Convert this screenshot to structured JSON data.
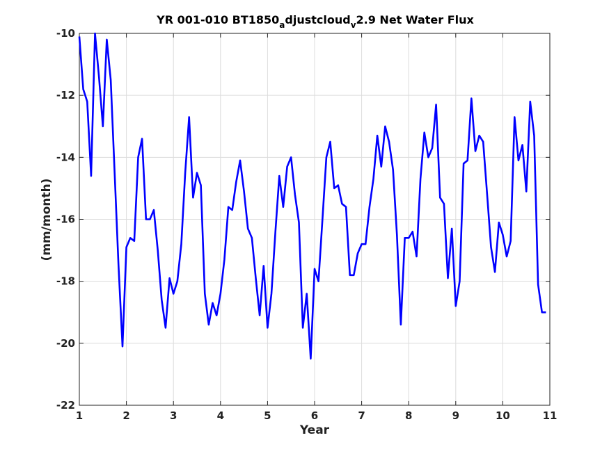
{
  "chart_data": {
    "type": "line",
    "title": {
      "prefix": "YR 001-010 BT1850",
      "sub1": "a",
      "mid": "djustcloud",
      "sub2": "v",
      "suffix": "2.9 Net Water Flux"
    },
    "xlabel": "Year",
    "ylabel": "(mm/month)",
    "xlim": [
      1,
      11
    ],
    "ylim": [
      -22,
      -10
    ],
    "xticks": [
      1,
      2,
      3,
      4,
      5,
      6,
      7,
      8,
      9,
      10,
      11
    ],
    "yticks": [
      -22,
      -20,
      -18,
      -16,
      -14,
      -12,
      -10
    ],
    "grid": true,
    "line_color": "#0000ff",
    "series": [
      {
        "x": [
          1.0,
          1.083,
          1.167,
          1.25,
          1.333,
          1.417,
          1.5,
          1.583,
          1.667,
          1.75,
          1.833,
          1.917,
          2.0,
          2.083,
          2.167,
          2.25,
          2.333,
          2.417,
          2.5,
          2.583,
          2.667,
          2.75,
          2.833,
          2.917,
          3.0,
          3.083,
          3.167,
          3.25,
          3.333,
          3.417,
          3.5,
          3.583,
          3.667,
          3.75,
          3.833,
          3.917,
          4.0,
          4.083,
          4.167,
          4.25,
          4.333,
          4.417,
          4.5,
          4.583,
          4.667,
          4.75,
          4.833,
          4.917,
          5.0,
          5.083,
          5.167,
          5.25,
          5.333,
          5.417,
          5.5,
          5.583,
          5.667,
          5.75,
          5.833,
          5.917,
          6.0,
          6.083,
          6.167,
          6.25,
          6.333,
          6.417,
          6.5,
          6.583,
          6.667,
          6.75,
          6.833,
          6.917,
          7.0,
          7.083,
          7.167,
          7.25,
          7.333,
          7.417,
          7.5,
          7.583,
          7.667,
          7.75,
          7.833,
          7.917,
          8.0,
          8.083,
          8.167,
          8.25,
          8.333,
          8.417,
          8.5,
          8.583,
          8.667,
          8.75,
          8.833,
          8.917,
          9.0,
          9.083,
          9.167,
          9.25,
          9.333,
          9.417,
          9.5,
          9.583,
          9.667,
          9.75,
          9.833,
          9.917,
          10.0,
          10.083,
          10.167,
          10.25,
          10.333,
          10.417,
          10.5,
          10.583,
          10.667,
          10.75,
          10.833,
          10.917
        ],
        "values": [
          -10.1,
          -11.8,
          -12.2,
          -14.6,
          -10.0,
          -11.4,
          -13.0,
          -10.2,
          -11.5,
          -14.5,
          -17.5,
          -20.1,
          -16.9,
          -16.6,
          -16.7,
          -14.0,
          -13.4,
          -16.0,
          -16.0,
          -15.7,
          -17.0,
          -18.6,
          -19.5,
          -17.9,
          -18.4,
          -18.0,
          -16.8,
          -14.5,
          -12.7,
          -15.3,
          -14.5,
          -14.9,
          -18.4,
          -19.4,
          -18.7,
          -19.1,
          -18.4,
          -17.3,
          -15.6,
          -15.7,
          -14.8,
          -14.1,
          -15.1,
          -16.3,
          -16.6,
          -17.9,
          -19.1,
          -17.5,
          -19.5,
          -18.4,
          -16.4,
          -14.6,
          -15.6,
          -14.3,
          -14.0,
          -15.2,
          -16.1,
          -19.5,
          -18.4,
          -20.5,
          -17.6,
          -18.0,
          -16.0,
          -14.0,
          -13.5,
          -15.0,
          -14.9,
          -15.5,
          -15.6,
          -17.8,
          -17.8,
          -17.1,
          -16.8,
          -16.8,
          -15.6,
          -14.7,
          -13.3,
          -14.3,
          -13.0,
          -13.5,
          -14.4,
          -16.5,
          -19.4,
          -16.6,
          -16.6,
          -16.4,
          -17.2,
          -14.7,
          -13.2,
          -14.0,
          -13.7,
          -12.3,
          -15.3,
          -15.5,
          -17.9,
          -16.3,
          -18.8,
          -18.0,
          -14.2,
          -14.1,
          -12.1,
          -13.8,
          -13.3,
          -13.5,
          -15.2,
          -16.9,
          -17.7,
          -16.1,
          -16.5,
          -17.2,
          -16.7,
          -12.7,
          -14.1,
          -13.6,
          -15.1,
          -12.2,
          -13.3,
          -18.1,
          -19.0,
          -19.0
        ]
      }
    ]
  }
}
